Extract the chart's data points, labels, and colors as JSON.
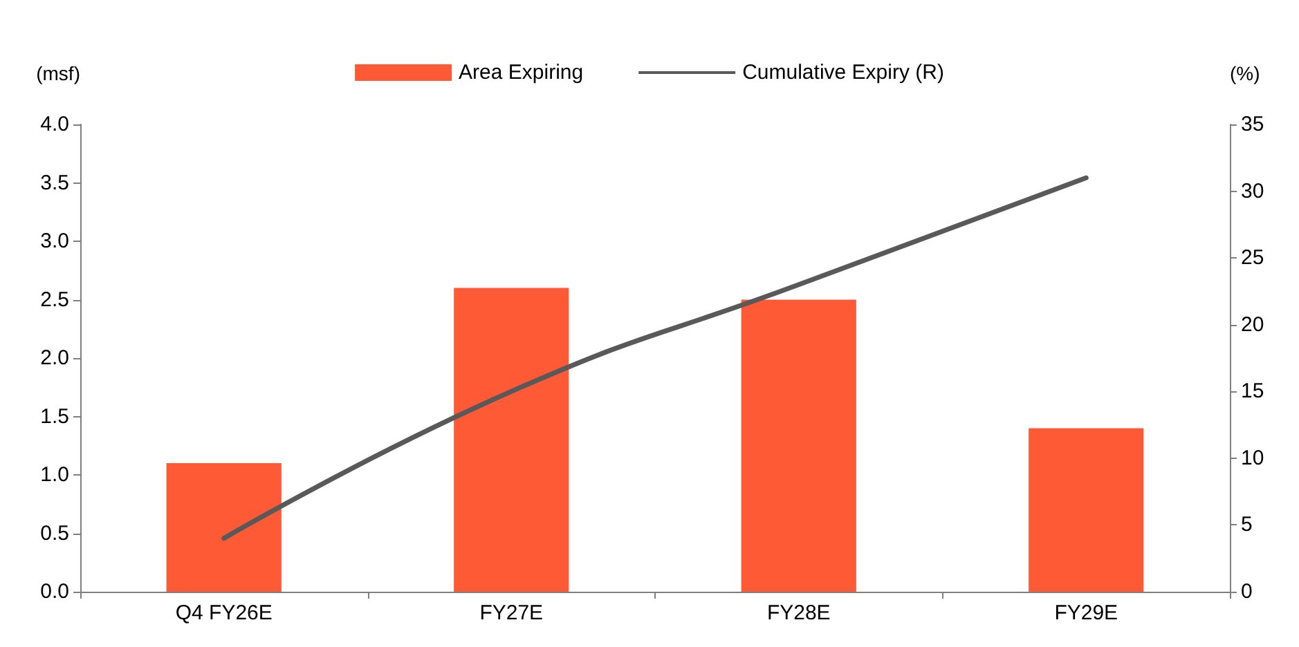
{
  "chart_data": {
    "type": "bar",
    "categories": [
      "Q4 FY26E",
      "FY27E",
      "FY28E",
      "FY29E"
    ],
    "ylabel": "(msf)",
    "y2label": "(%)",
    "series": [
      {
        "name": "Area Expiring",
        "color": "#ff5a36",
        "values": [
          1.1,
          2.6,
          2.5,
          1.4
        ]
      },
      {
        "name": "Cumulative Expiry (R)",
        "type": "line",
        "axis": "y2",
        "color": "#595959",
        "values": [
          4,
          15,
          23,
          31
        ]
      }
    ],
    "ylim": [
      0,
      4
    ],
    "yticks": [
      {
        "value": 0,
        "label": "0.0"
      },
      0.5,
      {
        "value": 1,
        "label": "1.0"
      },
      1.5,
      {
        "value": 2,
        "label": "2.0"
      },
      2.5,
      {
        "value": 3,
        "label": "3.0"
      },
      3.5,
      {
        "value": 4,
        "label": "4.0"
      }
    ],
    "y2lim": [
      0,
      35
    ],
    "y2ticks": [
      0,
      5,
      10,
      15,
      20,
      25,
      30,
      35
    ],
    "legend": "top",
    "grid": false,
    "marker": "none",
    "line_style": "solid"
  }
}
